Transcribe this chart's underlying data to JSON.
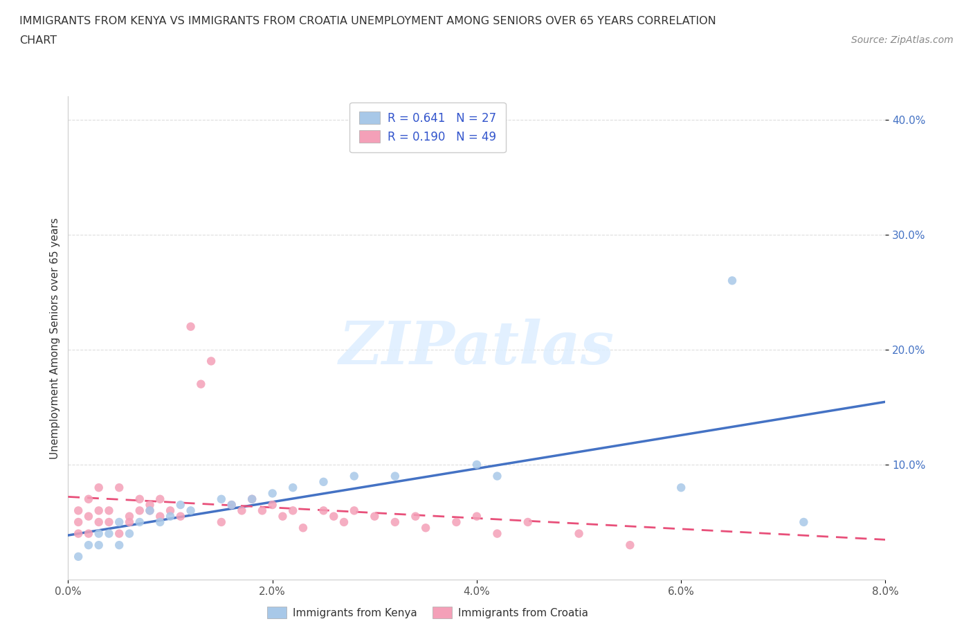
{
  "title_line1": "IMMIGRANTS FROM KENYA VS IMMIGRANTS FROM CROATIA UNEMPLOYMENT AMONG SENIORS OVER 65 YEARS CORRELATION",
  "title_line2": "CHART",
  "source": "Source: ZipAtlas.com",
  "ylabel": "Unemployment Among Seniors over 65 years",
  "kenya_color": "#A8C8E8",
  "croatia_color": "#F4A0B8",
  "kenya_line_color": "#4472C4",
  "croatia_line_color": "#E8507A",
  "watermark_text": "ZIPatlas",
  "R_kenya": 0.641,
  "N_kenya": 27,
  "R_croatia": 0.19,
  "N_croatia": 49,
  "xlim": [
    0.0,
    0.08
  ],
  "ylim": [
    0.0,
    0.42
  ],
  "yticks": [
    0.1,
    0.2,
    0.3,
    0.4
  ],
  "xticks": [
    0.0,
    0.02,
    0.04,
    0.06,
    0.08
  ],
  "kenya_x": [
    0.001,
    0.002,
    0.003,
    0.003,
    0.004,
    0.005,
    0.005,
    0.006,
    0.007,
    0.008,
    0.009,
    0.01,
    0.011,
    0.012,
    0.015,
    0.016,
    0.018,
    0.02,
    0.022,
    0.025,
    0.028,
    0.032,
    0.04,
    0.042,
    0.06,
    0.065,
    0.072
  ],
  "kenya_y": [
    0.02,
    0.03,
    0.03,
    0.04,
    0.04,
    0.03,
    0.05,
    0.04,
    0.05,
    0.06,
    0.05,
    0.055,
    0.065,
    0.06,
    0.07,
    0.065,
    0.07,
    0.075,
    0.08,
    0.085,
    0.09,
    0.09,
    0.1,
    0.09,
    0.08,
    0.26,
    0.05
  ],
  "croatia_x": [
    0.001,
    0.001,
    0.001,
    0.002,
    0.002,
    0.002,
    0.003,
    0.003,
    0.003,
    0.004,
    0.004,
    0.005,
    0.005,
    0.006,
    0.006,
    0.007,
    0.007,
    0.008,
    0.008,
    0.009,
    0.009,
    0.01,
    0.011,
    0.012,
    0.013,
    0.014,
    0.015,
    0.016,
    0.017,
    0.018,
    0.019,
    0.02,
    0.021,
    0.022,
    0.023,
    0.025,
    0.026,
    0.027,
    0.028,
    0.03,
    0.032,
    0.034,
    0.035,
    0.038,
    0.04,
    0.042,
    0.045,
    0.05,
    0.055
  ],
  "croatia_y": [
    0.04,
    0.05,
    0.06,
    0.04,
    0.055,
    0.07,
    0.05,
    0.06,
    0.08,
    0.05,
    0.06,
    0.04,
    0.08,
    0.05,
    0.055,
    0.06,
    0.07,
    0.06,
    0.065,
    0.055,
    0.07,
    0.06,
    0.055,
    0.22,
    0.17,
    0.19,
    0.05,
    0.065,
    0.06,
    0.07,
    0.06,
    0.065,
    0.055,
    0.06,
    0.045,
    0.06,
    0.055,
    0.05,
    0.06,
    0.055,
    0.05,
    0.055,
    0.045,
    0.05,
    0.055,
    0.04,
    0.05,
    0.04,
    0.03
  ],
  "legend_text_color": "#3355CC",
  "tick_label_color": "#4472C4",
  "grid_color": "#DDDDDD",
  "title_fontsize": 11.5,
  "tick_fontsize": 11
}
